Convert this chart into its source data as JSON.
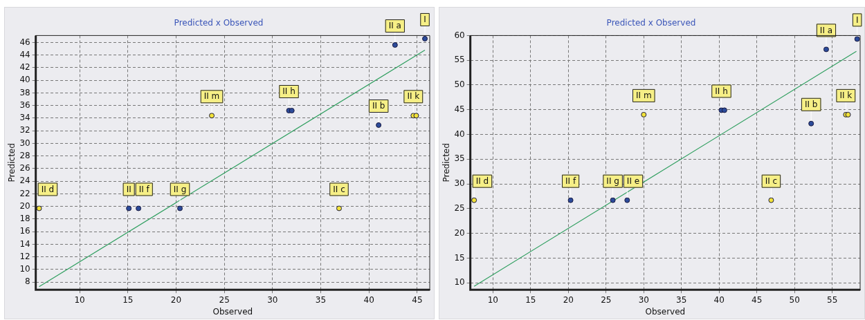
{
  "chart_data": [
    {
      "type": "scatter",
      "title": "Predicted x Observed",
      "xlabel": "Observed",
      "ylabel": "Predicted",
      "xlim": [
        5.45,
        46.3
      ],
      "ylim": [
        6.8,
        47.1
      ],
      "xticks": [
        10,
        15,
        20,
        25,
        30,
        35,
        40,
        45
      ],
      "yticks": [
        8,
        10,
        12,
        14,
        16,
        18,
        20,
        22,
        24,
        26,
        28,
        30,
        32,
        34,
        36,
        38,
        40,
        42,
        44,
        46
      ],
      "grid": true,
      "legend": false,
      "marker": "circle",
      "series": [
        {
          "color": "#2c4b9a",
          "x": [
            15.1,
            16.1,
            20.4,
            31.7,
            32.0,
            41.0,
            42.7,
            45.8
          ],
          "values": [
            19.7,
            19.7,
            19.7,
            35.2,
            35.2,
            32.9,
            45.6,
            46.6
          ]
        },
        {
          "color": "#f2e23a",
          "x": [
            5.8,
            23.7,
            36.9,
            44.6,
            44.9
          ],
          "values": [
            19.7,
            34.4,
            19.7,
            34.4,
            34.4
          ]
        },
        {
          "type": "line",
          "color": "#2e9e5e",
          "x": [
            5.8,
            45.8
          ],
          "values": [
            7.3,
            44.8
          ],
          "marker": "none"
        }
      ],
      "annotations": [
        {
          "text": "II d",
          "x": 5.8,
          "y": 19.7
        },
        {
          "text": "II",
          "x": 15.1,
          "y": 19.7
        },
        {
          "text": "II f",
          "x": 16.1,
          "y": 19.7
        },
        {
          "text": "II g",
          "x": 20.4,
          "y": 19.7
        },
        {
          "text": "II m",
          "x": 23.7,
          "y": 34.4
        },
        {
          "text": "II h",
          "x": 31.7,
          "y": 35.2
        },
        {
          "text": "II c",
          "x": 36.9,
          "y": 19.7
        },
        {
          "text": "II b",
          "x": 41.0,
          "y": 32.9
        },
        {
          "text": "II k",
          "x": 44.6,
          "y": 34.4
        },
        {
          "text": "II a",
          "x": 42.7,
          "y": 45.6
        },
        {
          "text": "I",
          "x": 45.8,
          "y": 46.6
        }
      ]
    },
    {
      "type": "scatter",
      "title": "Predicted x Observed",
      "xlabel": "Observed",
      "ylabel": "Predicted",
      "xlim": [
        7.0,
        58.7
      ],
      "ylim": [
        8.6,
        60
      ],
      "xticks": [
        10,
        15,
        20,
        25,
        30,
        35,
        40,
        45,
        50,
        55
      ],
      "yticks": [
        10,
        15,
        20,
        25,
        30,
        35,
        40,
        45,
        50,
        55,
        60
      ],
      "grid": true,
      "legend": false,
      "marker": "circle",
      "series": [
        {
          "color": "#2c4b9a",
          "x": [
            20.3,
            25.9,
            27.8,
            40.3,
            40.7,
            52.2,
            54.2,
            58.3
          ],
          "values": [
            26.7,
            26.7,
            26.7,
            44.9,
            44.9,
            42.2,
            57.2,
            59.3
          ]
        },
        {
          "color": "#f2e23a",
          "x": [
            7.5,
            30.0,
            46.9,
            56.8,
            57.1
          ],
          "values": [
            26.7,
            44.0,
            26.7,
            44.0,
            44.0
          ]
        },
        {
          "type": "line",
          "color": "#2e9e5e",
          "x": [
            7.5,
            58.2
          ],
          "values": [
            9.3,
            56.8
          ],
          "marker": "none"
        }
      ],
      "annotations": [
        {
          "text": "II d",
          "x": 7.5,
          "y": 26.7
        },
        {
          "text": "II f",
          "x": 20.3,
          "y": 26.7
        },
        {
          "text": "II g",
          "x": 25.9,
          "y": 26.7
        },
        {
          "text": "II e",
          "x": 27.8,
          "y": 26.7
        },
        {
          "text": "II m",
          "x": 30.0,
          "y": 44.0
        },
        {
          "text": "II h",
          "x": 40.3,
          "y": 44.9
        },
        {
          "text": "II c",
          "x": 46.9,
          "y": 26.7
        },
        {
          "text": "II b",
          "x": 52.2,
          "y": 42.2
        },
        {
          "text": "II k",
          "x": 56.8,
          "y": 44.0
        },
        {
          "text": "II a",
          "x": 54.2,
          "y": 57.2
        },
        {
          "text": "I",
          "x": 58.3,
          "y": 59.3
        }
      ]
    }
  ]
}
